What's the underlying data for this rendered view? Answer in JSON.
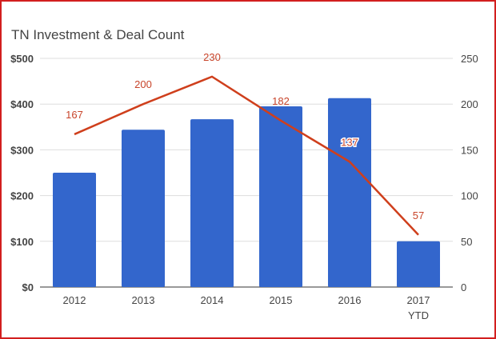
{
  "chart_data": {
    "type": "bar",
    "title": "TN Investment & Deal Count",
    "categories": [
      "2012",
      "2013",
      "2014",
      "2015",
      "2016",
      "2017 YTD"
    ],
    "category_lines": [
      [
        "2012"
      ],
      [
        "2013"
      ],
      [
        "2014"
      ],
      [
        "2015"
      ],
      [
        "2016"
      ],
      [
        "2017",
        "YTD"
      ]
    ],
    "series": [
      {
        "name": "Investment",
        "type": "bar",
        "axis": "left",
        "values": [
          250,
          344,
          367,
          395,
          413,
          100
        ],
        "color": "#3366cc"
      },
      {
        "name": "Deal Count",
        "type": "line",
        "axis": "right",
        "values": [
          167,
          200,
          230,
          182,
          137,
          57
        ],
        "labels": [
          "167",
          "200",
          "230",
          "182",
          "137",
          "57"
        ],
        "color": "#cf3f1c"
      }
    ],
    "left_axis": {
      "ylim": [
        0,
        500
      ],
      "ticks": [
        0,
        100,
        200,
        300,
        400,
        500
      ],
      "tick_labels": [
        "$0",
        "$100",
        "$200",
        "$300",
        "$400",
        "$500"
      ]
    },
    "right_axis": {
      "ylim": [
        0,
        250
      ],
      "ticks": [
        0,
        50,
        100,
        150,
        200,
        250
      ],
      "tick_labels": [
        "0",
        "50",
        "100",
        "150",
        "200",
        "250"
      ]
    },
    "grid": true,
    "legend": "none",
    "xlabel": "",
    "ylabel": ""
  }
}
